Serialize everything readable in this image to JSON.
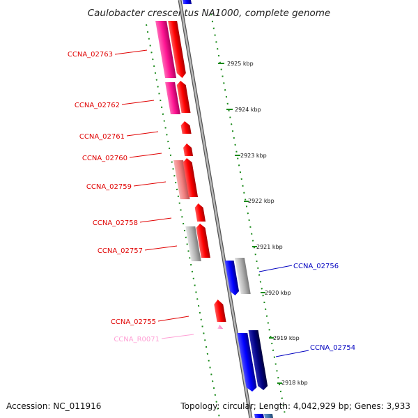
{
  "title": "Caulobacter crescentus NA1000, complete genome",
  "accession": "Accession: NC_011916",
  "summary": "Topology: circular; Length: 4,042,929 bp; Genes: 3,933",
  "ticks": [
    "2925 kbp",
    "2924 kbp",
    "2923 kbp",
    "2922 kbp",
    "2921 kbp",
    "2920 kbp",
    "2919 kbp",
    "2918 kbp"
  ],
  "left_labels": [
    "CCNA_02763",
    "CCNA_02762",
    "CCNA_02761",
    "CCNA_02760",
    "CCNA_02759",
    "CCNA_02758",
    "CCNA_02757",
    "CCNA_02755",
    "CCNA_R0071"
  ],
  "right_labels": [
    "CCNA_02756",
    "CCNA_02754"
  ],
  "colors": {
    "backbone": "#8f8f8f",
    "forward_cds": "#ff0000",
    "reverse_cds": "#0000ff",
    "dark_reverse": "#000080",
    "magenta": "#ff1493",
    "salmon": "#f08080",
    "grey": "#b4b4b4",
    "rna": "#ff9fd5",
    "tick_green": "#1a8a1a"
  }
}
